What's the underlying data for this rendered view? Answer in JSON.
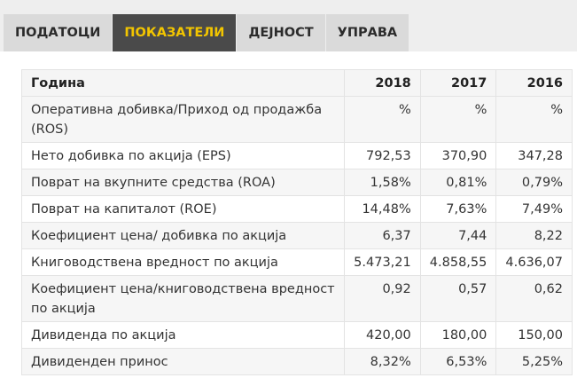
{
  "tabs": [
    {
      "label": "ПОДАТОЦИ",
      "active": false
    },
    {
      "label": "ПОКАЗАТЕЛИ",
      "active": true
    },
    {
      "label": "ДЕЈНОСТ",
      "active": false
    },
    {
      "label": "УПРАВА",
      "active": false
    }
  ],
  "colors": {
    "active_tab_bg": "#4a4a4a",
    "active_tab_text": "#f2c500",
    "tab_bg": "#dadada"
  },
  "table": {
    "header": {
      "label": "Година",
      "years": [
        "2018",
        "2017",
        "2016"
      ]
    },
    "rows": [
      {
        "label": "Оперативна добивка/Приход од продажба (ROS)",
        "values": [
          "%",
          "%",
          "%"
        ]
      },
      {
        "label": "Нето добивка по акција (EPS)",
        "values": [
          "792,53",
          "370,90",
          "347,28"
        ]
      },
      {
        "label": "Поврат на вкупните средства (ROA)",
        "values": [
          "1,58%",
          "0,81%",
          "0,79%"
        ]
      },
      {
        "label": "Поврат на капиталот (ROE)",
        "values": [
          "14,48%",
          "7,63%",
          "7,49%"
        ]
      },
      {
        "label": "Коефициент цена/ добивка по акција",
        "values": [
          "6,37",
          "7,44",
          "8,22"
        ]
      },
      {
        "label": "Книговодствена вредност по акција",
        "values": [
          "5.473,21",
          "4.858,55",
          "4.636,07"
        ]
      },
      {
        "label": "Коефициент цена/книговодствена вредност по акција",
        "values": [
          "0,92",
          "0,57",
          "0,62"
        ]
      },
      {
        "label": "Дивиденда по акција",
        "values": [
          "420,00",
          "180,00",
          "150,00"
        ]
      },
      {
        "label": "Дивиденден принос",
        "values": [
          "8,32%",
          "6,53%",
          "5,25%"
        ]
      }
    ]
  }
}
